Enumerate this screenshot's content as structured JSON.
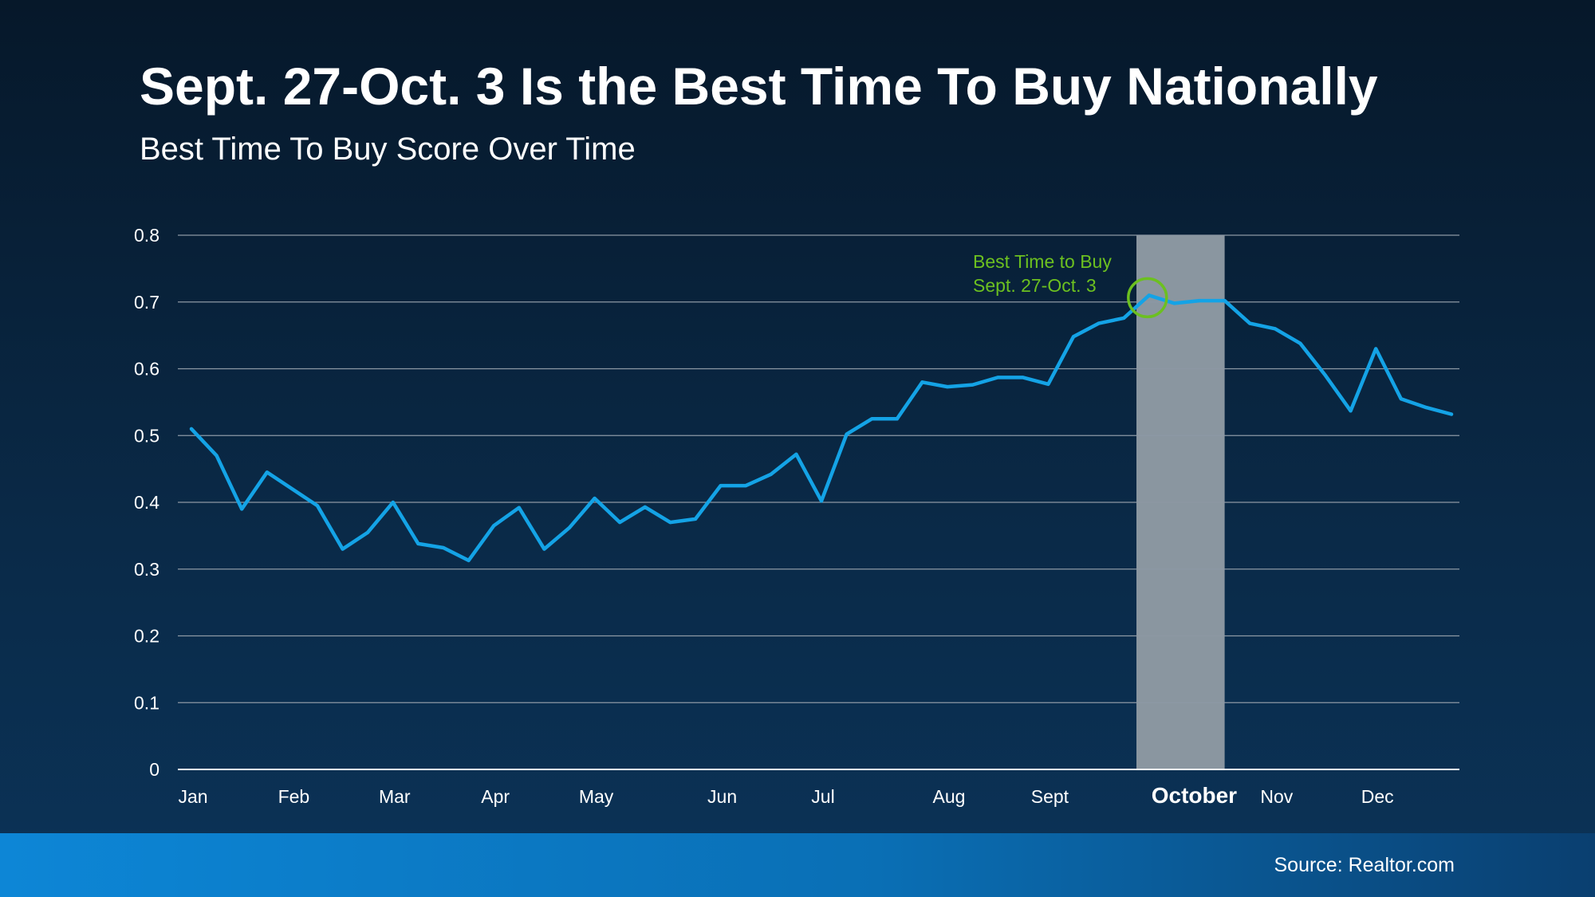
{
  "slide": {
    "title": "Sept. 27-Oct. 3 Is the Best Time To Buy Nationally",
    "subtitle": "Best Time To Buy Score Over Time",
    "source": "Source: Realtor.com"
  },
  "colors": {
    "line": "#14a3e6",
    "highlight": "#8a96a0",
    "annotation": "#6cc020",
    "grid": "#8d98a4",
    "text": "#ffffff"
  },
  "chart_data": {
    "type": "line",
    "title": "",
    "xlabel": "",
    "ylabel": "",
    "ylim": [
      0,
      0.8
    ],
    "yticks": [
      0,
      0.1,
      0.2,
      0.3,
      0.4,
      0.5,
      0.6,
      0.7,
      0.8
    ],
    "ytick_labels": [
      "0",
      "0.1",
      "0.2",
      "0.3",
      "0.4",
      "0.5",
      "0.6",
      "0.7",
      "0.8"
    ],
    "x_tick_labels": [
      "Jan",
      "Feb",
      "Mar",
      "Apr",
      "May",
      "Jun",
      "Jul",
      "Aug",
      "Sept",
      "October",
      "Nov",
      "Dec"
    ],
    "x_tick_weeks": [
      0,
      4,
      8,
      12,
      16,
      21,
      25,
      30,
      34,
      39,
      43,
      47
    ],
    "emphasized_label": "October",
    "highlight_weeks": [
      37.5,
      41
    ],
    "grid": true,
    "series": [
      {
        "values": [
          0.51,
          0.47,
          0.39,
          0.445,
          0.42,
          0.395,
          0.33,
          0.355,
          0.4,
          0.338,
          0.332,
          0.313,
          0.365,
          0.392,
          0.33,
          0.362,
          0.406,
          0.37,
          0.393,
          0.37,
          0.375,
          0.425,
          0.425,
          0.442,
          0.472,
          0.402,
          0.502,
          0.525,
          0.525,
          0.58,
          0.573,
          0.576,
          0.587,
          0.587,
          0.577,
          0.648,
          0.668,
          0.676,
          0.71,
          0.698,
          0.702,
          0.702,
          0.668,
          0.66,
          0.638,
          0.59,
          0.537,
          0.63,
          0.555,
          0.542,
          0.532
        ]
      }
    ],
    "annotation": {
      "lines": [
        "Best Time to Buy",
        "Sept. 27-Oct. 3"
      ],
      "week": 38,
      "value": 0.71
    }
  }
}
